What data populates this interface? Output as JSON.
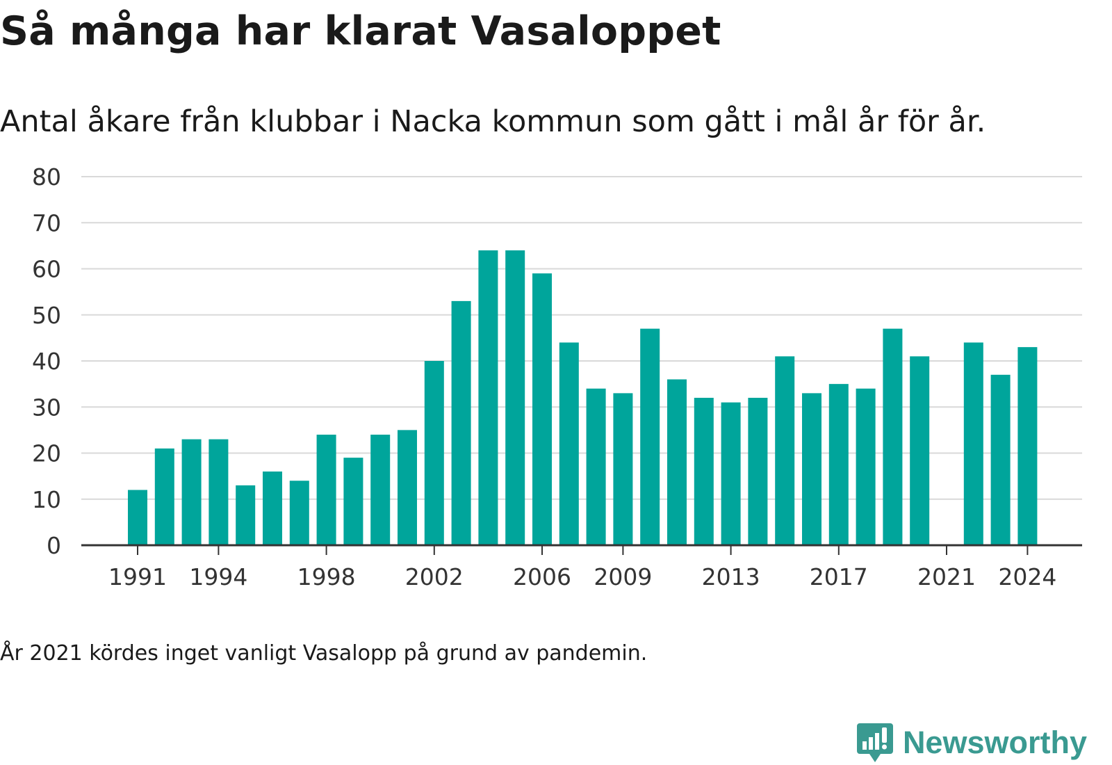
{
  "title": "Så många har klarat Vasaloppet",
  "subtitle": "Antal åkare från klubbar i Nacka kommun som gått i mål år för år.",
  "note": "År 2021 kördes inget vanligt Vasalopp på grund av pandemin.",
  "brand": {
    "name": "Newsworthy",
    "color": "#3a9a91",
    "icon": "newsworthy-chart-bubble-icon"
  },
  "colors": {
    "bar": "#00a59b",
    "grid": "#d9d9d9",
    "axis": "#333333",
    "tick_text": "#333333"
  },
  "chart_data": {
    "type": "bar",
    "title": "Så många har klarat Vasaloppet",
    "subtitle": "Antal åkare från klubbar i Nacka kommun som gått i mål år för år.",
    "xlabel": "",
    "ylabel": "",
    "ylim": [
      0,
      80
    ],
    "yticks": [
      0,
      10,
      20,
      30,
      40,
      50,
      60,
      70,
      80
    ],
    "xticks": [
      1991,
      1994,
      1998,
      2002,
      2006,
      2009,
      2013,
      2017,
      2021,
      2024
    ],
    "grid": true,
    "categories": [
      1991,
      1992,
      1993,
      1994,
      1995,
      1996,
      1997,
      1998,
      1999,
      2000,
      2001,
      2002,
      2003,
      2004,
      2005,
      2006,
      2007,
      2008,
      2009,
      2010,
      2011,
      2012,
      2013,
      2014,
      2015,
      2016,
      2017,
      2018,
      2019,
      2020,
      2021,
      2022,
      2023,
      2024
    ],
    "values": [
      12,
      21,
      23,
      23,
      13,
      16,
      14,
      24,
      19,
      24,
      25,
      40,
      53,
      64,
      64,
      59,
      44,
      34,
      33,
      47,
      36,
      32,
      31,
      32,
      41,
      33,
      35,
      34,
      47,
      41,
      null,
      44,
      37,
      43
    ]
  }
}
